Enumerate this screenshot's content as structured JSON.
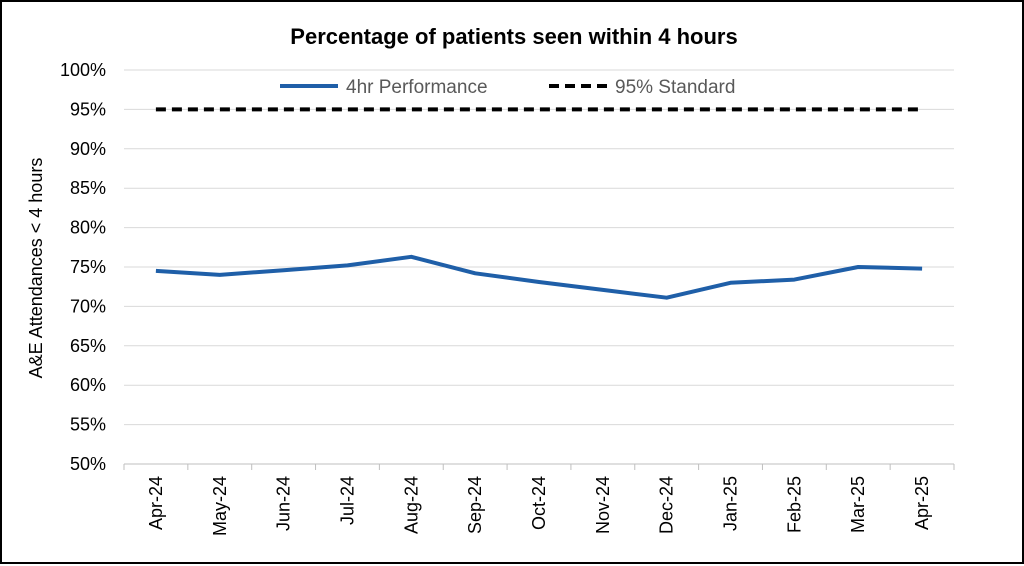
{
  "chart_data": {
    "type": "line",
    "title": "Percentage of patients seen within 4 hours",
    "xlabel": "",
    "ylabel": "A&E Attendances < 4 hours",
    "categories": [
      "Apr-24",
      "May-24",
      "Jun-24",
      "Jul-24",
      "Aug-24",
      "Sep-24",
      "Oct-24",
      "Nov-24",
      "Dec-24",
      "Jan-25",
      "Feb-25",
      "Mar-25",
      "Apr-25"
    ],
    "series": [
      {
        "name": "4hr Performance",
        "color": "#1f5fa8",
        "style": "solid",
        "values": [
          74.5,
          74.0,
          74.6,
          75.2,
          76.3,
          74.2,
          73.1,
          72.1,
          71.1,
          73.0,
          73.4,
          75.0,
          74.8
        ]
      },
      {
        "name": "95% Standard",
        "color": "#000000",
        "style": "dashed",
        "values": [
          95,
          95,
          95,
          95,
          95,
          95,
          95,
          95,
          95,
          95,
          95,
          95,
          95
        ]
      }
    ],
    "ylim": [
      50,
      100
    ],
    "yticks": [
      "50%",
      "55%",
      "60%",
      "65%",
      "70%",
      "75%",
      "80%",
      "85%",
      "90%",
      "95%",
      "100%"
    ],
    "ytick_values": [
      50,
      55,
      60,
      65,
      70,
      75,
      80,
      85,
      90,
      95,
      100
    ],
    "grid": true,
    "legend": "top-center"
  }
}
